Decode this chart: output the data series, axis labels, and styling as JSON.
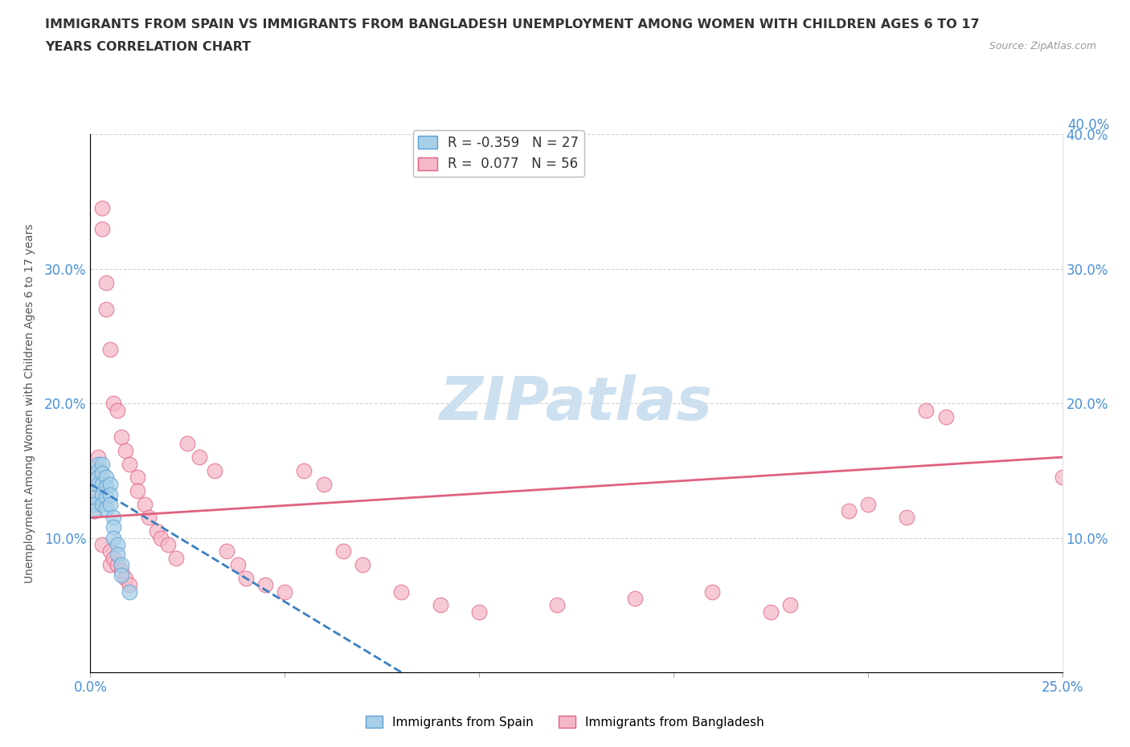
{
  "title_line1": "IMMIGRANTS FROM SPAIN VS IMMIGRANTS FROM BANGLADESH UNEMPLOYMENT AMONG WOMEN WITH CHILDREN AGES 6 TO 17",
  "title_line2": "YEARS CORRELATION CHART",
  "source": "Source: ZipAtlas.com",
  "ylabel": "Unemployment Among Women with Children Ages 6 to 17 years",
  "xlim": [
    0.0,
    0.25
  ],
  "ylim": [
    0.0,
    0.4
  ],
  "spain_R": -0.359,
  "spain_N": 27,
  "bangladesh_R": 0.077,
  "bangladesh_N": 56,
  "spain_color": "#a8d0e8",
  "bangladesh_color": "#f5b8c8",
  "spain_edge_color": "#5a9fd4",
  "bangladesh_edge_color": "#e06080",
  "spain_line_color": "#3a7fc1",
  "bangladesh_line_color": "#e06080",
  "watermark": "ZIPatlas",
  "watermark_color": "#cde0f0",
  "tick_color": "#4a90d9",
  "grid_color": "#cccccc",
  "title_color": "#333333",
  "ylabel_color": "#555555",
  "spain_x": [
    0.001,
    0.001,
    0.001,
    0.002,
    0.002,
    0.002,
    0.002,
    0.003,
    0.003,
    0.003,
    0.003,
    0.003,
    0.004,
    0.004,
    0.004,
    0.004,
    0.005,
    0.005,
    0.005,
    0.006,
    0.006,
    0.006,
    0.007,
    0.007,
    0.008,
    0.008,
    0.01
  ],
  "spain_y": [
    0.13,
    0.125,
    0.12,
    0.155,
    0.15,
    0.145,
    0.14,
    0.155,
    0.148,
    0.14,
    0.132,
    0.125,
    0.145,
    0.138,
    0.13,
    0.122,
    0.14,
    0.132,
    0.125,
    0.115,
    0.108,
    0.1,
    0.095,
    0.088,
    0.08,
    0.072,
    0.06
  ],
  "bangladesh_x": [
    0.001,
    0.001,
    0.002,
    0.002,
    0.003,
    0.003,
    0.003,
    0.004,
    0.004,
    0.005,
    0.005,
    0.005,
    0.006,
    0.006,
    0.007,
    0.007,
    0.008,
    0.008,
    0.009,
    0.009,
    0.01,
    0.01,
    0.012,
    0.012,
    0.014,
    0.015,
    0.017,
    0.018,
    0.02,
    0.022,
    0.025,
    0.028,
    0.032,
    0.035,
    0.038,
    0.04,
    0.045,
    0.05,
    0.055,
    0.06,
    0.065,
    0.07,
    0.08,
    0.09,
    0.1,
    0.12,
    0.14,
    0.16,
    0.175,
    0.18,
    0.195,
    0.2,
    0.21,
    0.215,
    0.22,
    0.25
  ],
  "bangladesh_y": [
    0.13,
    0.12,
    0.16,
    0.15,
    0.345,
    0.33,
    0.095,
    0.29,
    0.27,
    0.24,
    0.09,
    0.08,
    0.2,
    0.085,
    0.195,
    0.08,
    0.175,
    0.075,
    0.165,
    0.07,
    0.155,
    0.065,
    0.145,
    0.135,
    0.125,
    0.115,
    0.105,
    0.1,
    0.095,
    0.085,
    0.17,
    0.16,
    0.15,
    0.09,
    0.08,
    0.07,
    0.065,
    0.06,
    0.15,
    0.14,
    0.09,
    0.08,
    0.06,
    0.05,
    0.045,
    0.05,
    0.055,
    0.06,
    0.045,
    0.05,
    0.12,
    0.125,
    0.115,
    0.195,
    0.19,
    0.145
  ],
  "spain_trend_x0": 0.0,
  "spain_trend_y0": 0.14,
  "spain_trend_x1": 0.08,
  "spain_trend_y1": 0.0,
  "bangladesh_trend_x0": 0.0,
  "bangladesh_trend_y0": 0.115,
  "bangladesh_trend_x1": 0.25,
  "bangladesh_trend_y1": 0.16
}
